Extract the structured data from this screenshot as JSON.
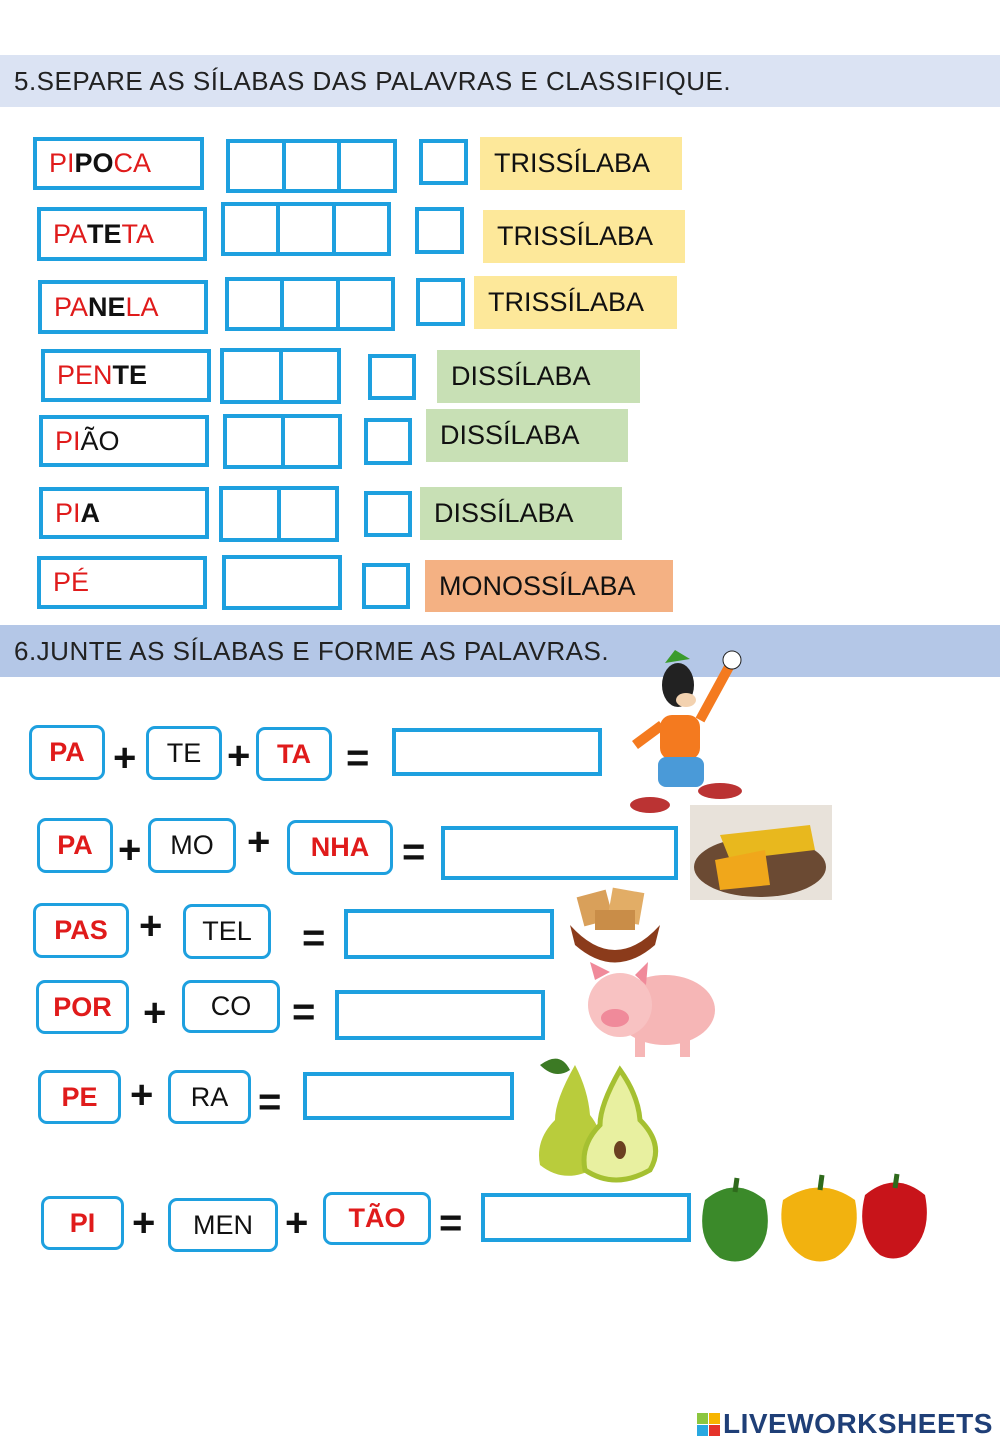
{
  "section5": {
    "title": "5.SEPARE  AS  SÍLABAS  DAS  PALAVRAS  E CLASSIFIQUE.",
    "rows": [
      {
        "word": [
          {
            "t": "PI",
            "c": "#e01b1b",
            "b": false
          },
          {
            "t": "PO",
            "c": "#111",
            "b": true
          },
          {
            "t": "CA",
            "c": "#e01b1b",
            "b": false
          }
        ],
        "cells": 3,
        "label": "TRISSÍLABA",
        "label_color": "#fde89a"
      },
      {
        "word": [
          {
            "t": "PA",
            "c": "#e01b1b",
            "b": false
          },
          {
            "t": "TE",
            "c": "#111",
            "b": true
          },
          {
            "t": "TA",
            "c": "#e01b1b",
            "b": false
          }
        ],
        "cells": 3,
        "label": "TRISSÍLABA",
        "label_color": "#fde89a"
      },
      {
        "word": [
          {
            "t": "PA",
            "c": "#e01b1b",
            "b": false
          },
          {
            "t": "NE",
            "c": "#111",
            "b": true
          },
          {
            "t": "LA",
            "c": "#e01b1b",
            "b": false
          }
        ],
        "cells": 3,
        "label": "TRISSÍLABA",
        "label_color": "#fde89a"
      },
      {
        "word": [
          {
            "t": "PEN",
            "c": "#e01b1b",
            "b": false
          },
          {
            "t": "TE",
            "c": "#111",
            "b": true
          }
        ],
        "cells": 2,
        "label": "DISSÍLABA",
        "label_color": "#c8e0b5"
      },
      {
        "word": [
          {
            "t": "PI",
            "c": "#e01b1b",
            "b": false
          },
          {
            "t": "ÃO",
            "c": "#111",
            "b": false
          }
        ],
        "cells": 2,
        "label": "DISSÍLABA",
        "label_color": "#c8e0b5"
      },
      {
        "word": [
          {
            "t": "PI",
            "c": "#e01b1b",
            "b": false
          },
          {
            "t": "A",
            "c": "#111",
            "b": true
          }
        ],
        "cells": 2,
        "label": "DISSÍLABA",
        "label_color": "#c8e0b5"
      },
      {
        "word": [
          {
            "t": "PÉ",
            "c": "#e01b1b",
            "b": false
          }
        ],
        "cells": 1,
        "label": "MONOSSÍLABA",
        "label_color": "#f4b183"
      }
    ]
  },
  "section6": {
    "title": "6.JUNTE  AS  SÍLABAS  E  FORME  AS  PALAVRAS.",
    "plus": "+",
    "equals": "=",
    "rows": [
      {
        "syllables": [
          {
            "t": "PA",
            "red": true
          },
          {
            "t": "TE",
            "red": false
          },
          {
            "t": "TA",
            "red": true
          }
        ],
        "answer": "",
        "picture": "goofy-image"
      },
      {
        "syllables": [
          {
            "t": "PA",
            "red": true
          },
          {
            "t": "MO",
            "red": false
          },
          {
            "t": "NHA",
            "red": true
          }
        ],
        "answer": "",
        "picture": "pamonha-image"
      },
      {
        "syllables": [
          {
            "t": "PAS",
            "red": true
          },
          {
            "t": "TEL",
            "red": false
          }
        ],
        "answer": "",
        "picture": "pastel-image"
      },
      {
        "syllables": [
          {
            "t": "POR",
            "red": true
          },
          {
            "t": "CO",
            "red": false
          }
        ],
        "answer": "",
        "picture": "pig-image"
      },
      {
        "syllables": [
          {
            "t": "PE",
            "red": true
          },
          {
            "t": "RA",
            "red": false
          }
        ],
        "answer": "",
        "picture": "pear-image"
      },
      {
        "syllables": [
          {
            "t": "PI",
            "red": true
          },
          {
            "t": "MEN",
            "red": false
          },
          {
            "t": "TÃO",
            "red": true
          }
        ],
        "answer": "",
        "picture": "peppers-image"
      }
    ]
  },
  "colors": {
    "accent": "#1ea0df",
    "header5": "#dbe3f3",
    "header6": "#b4c7e7",
    "red": "#e01b1b"
  },
  "footer": {
    "logo_text": "LIVEWORKSHEETS",
    "logo_badge": [
      "L",
      "I",
      "V",
      "E"
    ]
  }
}
